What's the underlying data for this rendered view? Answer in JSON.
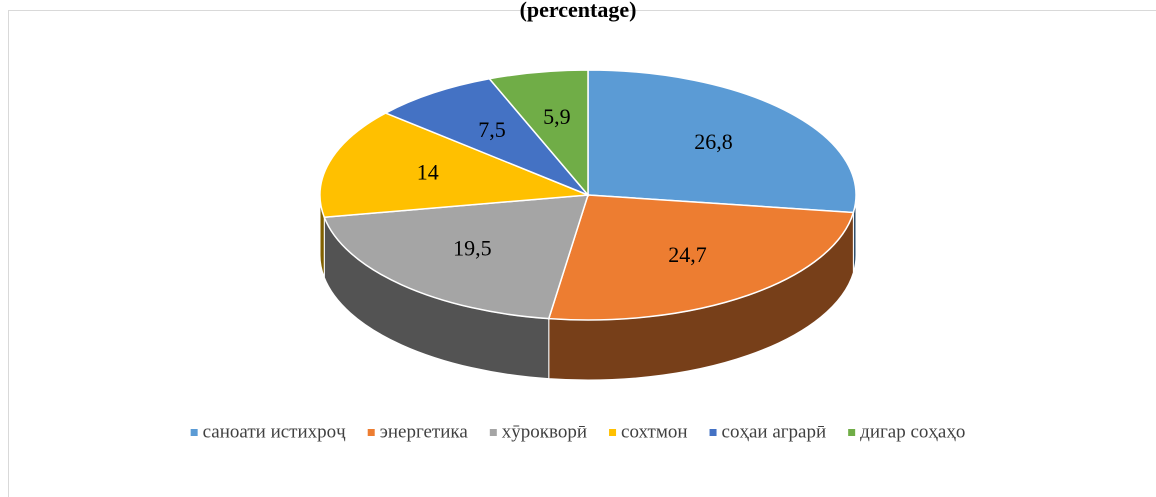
{
  "chart_data": {
    "type": "pie",
    "title": "(percentage)",
    "categories": [
      "саноати истихроҷ",
      "энергетика",
      "хӯрокворӣ",
      "сохтмон",
      "соҳаи аграрӣ",
      "дигар соҳаҳо"
    ],
    "values": [
      26.8,
      24.7,
      19.5,
      14,
      7.5,
      5.9
    ],
    "value_labels": [
      "26,8",
      "24,7",
      "19,5",
      "14",
      "7,5",
      "5,9"
    ],
    "colors": [
      "#5b9bd5",
      "#ed7d31",
      "#a5a5a5",
      "#ffc000",
      "#4472c4",
      "#70ad47"
    ],
    "legend": "bottom"
  }
}
